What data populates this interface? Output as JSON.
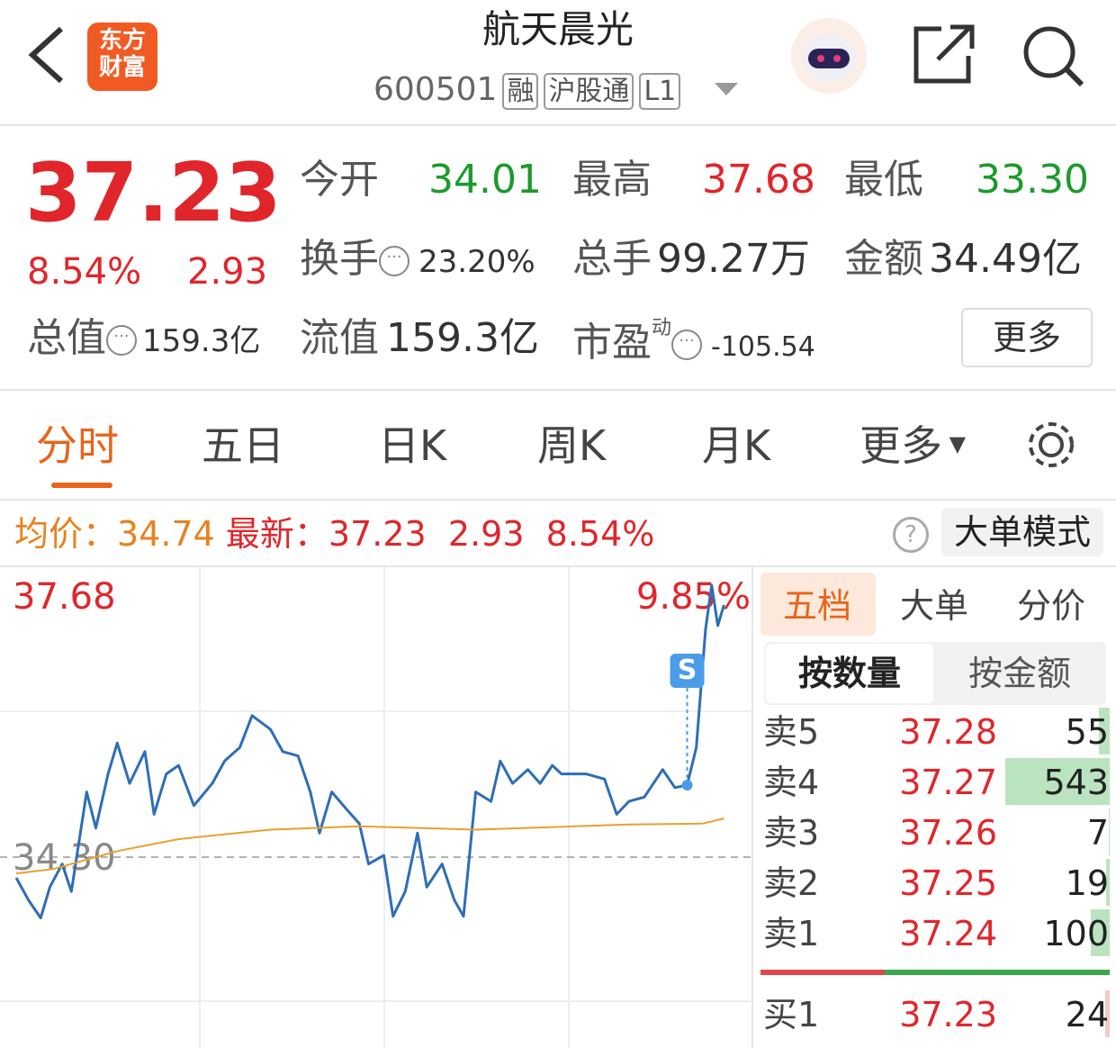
{
  "header": {
    "logo": [
      "东方",
      "财富"
    ],
    "title": "航天晨光",
    "code": "600501",
    "tags": [
      "融",
      "沪股通",
      "L1"
    ]
  },
  "quote": {
    "price": "37.23",
    "change_pct": "8.54%",
    "change": "2.93",
    "stats": [
      {
        "label": "今开",
        "value": "34.01"
      },
      {
        "label": "最高",
        "value": "37.68"
      },
      {
        "label": "最低",
        "value": "33.30"
      },
      {
        "label": "换手",
        "value": "23.20%"
      },
      {
        "label": "总手",
        "value": "99.27万"
      },
      {
        "label": "金额",
        "value": "34.49亿"
      },
      {
        "label": "总值",
        "value": "159.3亿"
      },
      {
        "label": "流值",
        "value": "159.3亿"
      },
      {
        "label": "市盈",
        "sup": "动",
        "value": "-105.54"
      }
    ],
    "more": "更多"
  },
  "tabs": [
    "分时",
    "五日",
    "日K",
    "周K",
    "月K",
    "更多"
  ],
  "info": {
    "avg_label": "均价：",
    "avg": "34.74",
    "last_label": "最新：",
    "last": "37.23",
    "change": "2.93",
    "change_pct": "8.54%",
    "button": "大单模式"
  },
  "chart_data": {
    "type": "line",
    "xlim": [
      0,
      240
    ],
    "ylim": [
      30.92,
      37.68
    ],
    "yticks": [
      37.68,
      {
        "value": 34.3,
        "label": "34.30"
      }
    ],
    "y2lim": [
      -9.85,
      9.85
    ],
    "y2ticks": [
      {
        "value": 9.85,
        "label": "9.85%"
      }
    ],
    "x": [
      0,
      4,
      8,
      11,
      15,
      18,
      23,
      26,
      30,
      33,
      37,
      42,
      45,
      49,
      53,
      58,
      64,
      68,
      73,
      77,
      83,
      87,
      92,
      96,
      99,
      103,
      108,
      112,
      115,
      120,
      123,
      127,
      131,
      134,
      139,
      143,
      146,
      150,
      155,
      158,
      162,
      167,
      171,
      175,
      178,
      186,
      192,
      196,
      200,
      205,
      211,
      215,
      219,
      222,
      225,
      227,
      229,
      231
    ],
    "series": [
      {
        "color": "#2f6db5",
        "values": [
          34.06,
          33.8,
          33.59,
          33.95,
          34.22,
          33.9,
          35.06,
          34.64,
          35.27,
          35.63,
          35.16,
          35.53,
          34.8,
          35.27,
          35.37,
          34.9,
          35.16,
          35.42,
          35.58,
          35.95,
          35.79,
          35.53,
          35.48,
          35.06,
          34.58,
          35.06,
          34.85,
          34.69,
          34.22,
          34.32,
          33.61,
          33.9,
          34.58,
          33.95,
          34.22,
          33.8,
          33.61,
          35.06,
          34.95,
          35.42,
          35.16,
          35.32,
          35.16,
          35.37,
          35.27,
          35.27,
          35.21,
          34.8,
          34.95,
          35.0,
          35.32,
          35.11,
          35.14,
          35.58,
          36.95,
          37.47,
          37.0,
          37.24
        ]
      },
      {
        "color": "#e8a02e",
        "x": [
          0,
          12,
          33,
          53,
          83,
          112,
          150,
          200,
          224,
          231
        ],
        "values": [
          34.11,
          34.16,
          34.37,
          34.51,
          34.62,
          34.66,
          34.62,
          34.68,
          34.69,
          34.75
        ]
      }
    ],
    "signal": {
      "label": "S",
      "x": 219
    }
  },
  "orderbook": {
    "tabs": [
      "五档",
      "大单",
      "分价"
    ],
    "subtabs": [
      "按数量",
      "按金额"
    ],
    "levels": [
      {
        "side": "卖5",
        "price": "37.28",
        "qty": 55
      },
      {
        "side": "卖4",
        "price": "37.27",
        "qty": 543
      },
      {
        "side": "卖3",
        "price": "37.26",
        "qty": 7
      },
      {
        "side": "卖2",
        "price": "37.25",
        "qty": 19
      },
      {
        "side": "卖1",
        "price": "37.24",
        "qty": 100
      },
      {
        "side": "买1",
        "price": "37.23",
        "qty": 24
      }
    ]
  }
}
